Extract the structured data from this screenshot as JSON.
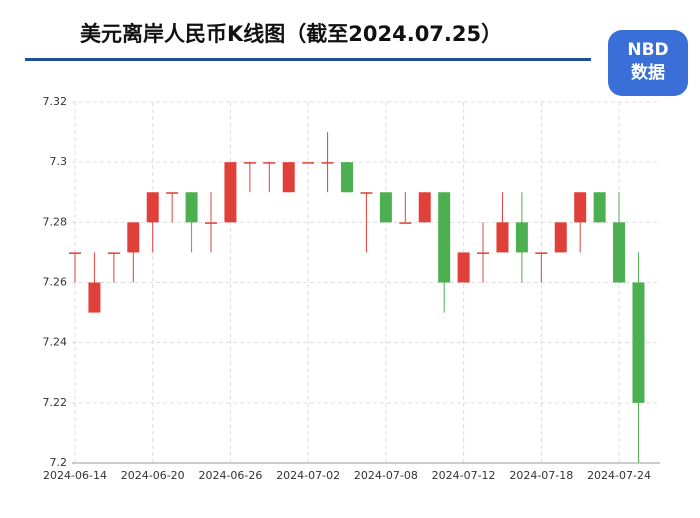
{
  "logo": {
    "line1": "NBD",
    "line2": "数据"
  },
  "chart_data": {
    "type": "candlestick",
    "title": "美元离岸人民币K线图（截至2024.07.25）",
    "categories": [
      "2024-06-14",
      null,
      null,
      null,
      "2024-06-20",
      null,
      null,
      null,
      "2024-06-26",
      null,
      null,
      null,
      "2024-07-02",
      null,
      null,
      null,
      "2024-07-08",
      null,
      null,
      null,
      "2024-07-12",
      null,
      null,
      null,
      "2024-07-18",
      null,
      null,
      null,
      "2024-07-24",
      null
    ],
    "open": [
      7.27,
      7.25,
      7.27,
      7.27,
      7.28,
      7.29,
      7.29,
      7.28,
      7.28,
      7.3,
      7.3,
      7.29,
      7.3,
      7.3,
      7.3,
      7.29,
      7.29,
      7.28,
      7.28,
      7.29,
      7.26,
      7.27,
      7.27,
      7.28,
      7.27,
      7.27,
      7.28,
      7.29,
      7.28,
      7.26
    ],
    "close": [
      7.27,
      7.26,
      7.27,
      7.28,
      7.29,
      7.29,
      7.28,
      7.28,
      7.3,
      7.3,
      7.3,
      7.3,
      7.3,
      7.3,
      7.29,
      7.29,
      7.28,
      7.28,
      7.29,
      7.26,
      7.27,
      7.27,
      7.28,
      7.27,
      7.27,
      7.28,
      7.29,
      7.28,
      7.26,
      7.22
    ],
    "low": [
      7.26,
      7.25,
      7.26,
      7.26,
      7.27,
      7.28,
      7.27,
      7.27,
      7.28,
      7.29,
      7.29,
      7.29,
      7.3,
      7.29,
      7.29,
      7.27,
      7.28,
      7.28,
      7.28,
      7.25,
      7.26,
      7.26,
      7.27,
      7.26,
      7.26,
      7.27,
      7.27,
      7.28,
      7.26,
      7.2
    ],
    "high": [
      7.27,
      7.27,
      7.27,
      7.28,
      7.29,
      7.29,
      7.29,
      7.29,
      7.3,
      7.3,
      7.3,
      7.3,
      7.3,
      7.31,
      7.3,
      7.29,
      7.29,
      7.29,
      7.29,
      7.29,
      7.27,
      7.28,
      7.29,
      7.29,
      7.27,
      7.28,
      7.29,
      7.29,
      7.29,
      7.27
    ],
    "up_color": "#e0403a",
    "down_color": "#4caf50",
    "ylim": [
      7.2,
      7.32
    ],
    "yticks": [
      7.2,
      7.22,
      7.24,
      7.26,
      7.28,
      7.3,
      7.32
    ],
    "grid": true
  }
}
